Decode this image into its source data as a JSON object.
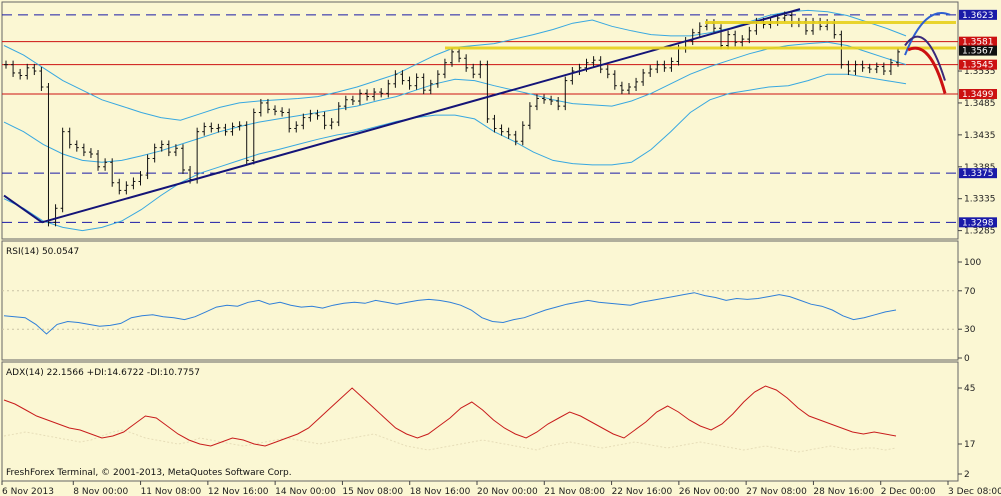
{
  "chart_data": {
    "type": "line",
    "title": "",
    "copyright": "FreshForex Terminal, © 2001-2013, MetaQuotes Software Corp.",
    "x_labels": [
      "6 Nov 2013",
      "8 Nov 00:00",
      "11 Nov 08:00",
      "12 Nov 16:00",
      "14 Nov 00:00",
      "15 Nov 08:00",
      "18 Nov 16:00",
      "20 Nov 00:00",
      "21 Nov 08:00",
      "22 Nov 16:00",
      "26 Nov 00:00",
      "27 Nov 08:00",
      "28 Nov 16:00",
      "2 Dec 00:00",
      "3 Dec 08:00"
    ],
    "price_panel": {
      "ylim": [
        1.3275,
        1.364
      ],
      "tick_labels": [
        "1.3535",
        "1.3485",
        "1.3435",
        "1.3385",
        "1.3335",
        "1.3285"
      ],
      "ticks": [
        1.3535,
        1.3485,
        1.3435,
        1.3385,
        1.3335,
        1.3285
      ],
      "levels": [
        {
          "label": "1.3623",
          "value": 1.3623,
          "color": "#1a1aa8",
          "style": "dashed"
        },
        {
          "label": "1.3581",
          "value": 1.3581,
          "color": "#cc1111",
          "style": "solid"
        },
        {
          "label": "1.3567",
          "value": 1.3567,
          "color": "#111111",
          "style": "tag"
        },
        {
          "label": "1.3545",
          "value": 1.3545,
          "color": "#cc1111",
          "style": "solid"
        },
        {
          "label": "1.3499",
          "value": 1.3499,
          "color": "#cc1111",
          "style": "solid"
        },
        {
          "label": "1.3375",
          "value": 1.3375,
          "color": "#1a1aa8",
          "style": "dashed"
        },
        {
          "label": "1.3298",
          "value": 1.3298,
          "color": "#1a1aa8",
          "style": "dashed"
        }
      ],
      "series": [
        {
          "kind": "ohlc",
          "values": [
            1.3545,
            1.3532,
            1.3528,
            1.354,
            1.3535,
            1.351,
            1.3298,
            1.332,
            1.344,
            1.342,
            1.3415,
            1.3408,
            1.3405,
            1.3385,
            1.3392,
            1.336,
            1.3348,
            1.3356,
            1.3362,
            1.3372,
            1.3398,
            1.3415,
            1.342,
            1.3408,
            1.3414,
            1.338,
            1.3365,
            1.344,
            1.3448,
            1.3445,
            1.3446,
            1.344,
            1.3448,
            1.345,
            1.3395,
            1.347,
            1.3485,
            1.3475,
            1.3472,
            1.347,
            1.3445,
            1.345,
            1.3462,
            1.3468,
            1.3465,
            1.345,
            1.3455,
            1.348,
            1.349,
            1.3488,
            1.35,
            1.3495,
            1.3502,
            1.35,
            1.3515,
            1.353,
            1.352,
            1.3512,
            1.3525,
            1.3505,
            1.3515,
            1.353,
            1.3548,
            1.3565,
            1.3555,
            1.354,
            1.353,
            1.3545,
            1.346,
            1.3445,
            1.344,
            1.3435,
            1.3425,
            1.345,
            1.348,
            1.3492,
            1.349,
            1.3488,
            1.348,
            1.352,
            1.3535,
            1.354,
            1.3548,
            1.3552,
            1.3538,
            1.353,
            1.3512,
            1.3505,
            1.351,
            1.3518,
            1.3532,
            1.3538,
            1.3545,
            1.354,
            1.355,
            1.357,
            1.3582,
            1.3595,
            1.3605,
            1.361,
            1.3602,
            1.3575,
            1.3592,
            1.358,
            1.3585,
            1.3598,
            1.3612,
            1.3608,
            1.3612,
            1.3618,
            1.3622,
            1.361,
            1.3612,
            1.3598,
            1.3612,
            1.3605,
            1.361,
            1.3592,
            1.3545,
            1.3535,
            1.3545,
            1.354,
            1.3538,
            1.3542,
            1.3535,
            1.3548,
            1.3565
          ]
        },
        {
          "kind": "bollinger-upper",
          "values": [
            1.3575,
            1.356,
            1.354,
            1.352,
            1.3505,
            1.349,
            1.348,
            1.347,
            1.3462,
            1.3458,
            1.3468,
            1.3478,
            1.3485,
            1.3488,
            1.349,
            1.3492,
            1.3495,
            1.3502,
            1.351,
            1.352,
            1.353,
            1.3545,
            1.356,
            1.3572,
            1.3575,
            1.3578,
            1.3585,
            1.3592,
            1.36,
            1.361,
            1.3615,
            1.3605,
            1.3598,
            1.3592,
            1.359,
            1.359,
            1.3595,
            1.3602,
            1.3612,
            1.3622,
            1.3628,
            1.363,
            1.3628,
            1.3622,
            1.3612,
            1.3602,
            1.359
          ]
        },
        {
          "kind": "bollinger-middle",
          "values": [
            1.3455,
            1.344,
            1.342,
            1.3405,
            1.3395,
            1.3392,
            1.3395,
            1.3402,
            1.341,
            1.342,
            1.343,
            1.344,
            1.3448,
            1.3455,
            1.346,
            1.3465,
            1.347,
            1.3475,
            1.348,
            1.3488,
            1.3495,
            1.3505,
            1.3515,
            1.3522,
            1.352,
            1.3512,
            1.3505,
            1.3498,
            1.349,
            1.3484,
            1.3482,
            1.348,
            1.3488,
            1.35,
            1.3515,
            1.353,
            1.3542,
            1.3552,
            1.3562,
            1.357,
            1.3575,
            1.3578,
            1.358,
            1.3575,
            1.3565,
            1.3555,
            1.3545
          ]
        },
        {
          "kind": "bollinger-lower",
          "values": [
            1.3335,
            1.332,
            1.33,
            1.329,
            1.3285,
            1.329,
            1.33,
            1.3318,
            1.334,
            1.336,
            1.3375,
            1.3385,
            1.3395,
            1.3405,
            1.3412,
            1.342,
            1.3428,
            1.3435,
            1.344,
            1.3448,
            1.3456,
            1.3462,
            1.3466,
            1.3466,
            1.346,
            1.344,
            1.3425,
            1.3408,
            1.3395,
            1.339,
            1.3388,
            1.3388,
            1.3392,
            1.3412,
            1.344,
            1.347,
            1.349,
            1.35,
            1.3505,
            1.351,
            1.3512,
            1.352,
            1.353,
            1.353,
            1.3525,
            1.352,
            1.3515
          ]
        }
      ]
    },
    "rsi_panel": {
      "title": "RSI(14) 50.0547",
      "ylim": [
        0,
        100
      ],
      "tick_labels": [
        "100",
        "70",
        "30",
        "0"
      ],
      "ticks": [
        100,
        70,
        30,
        0
      ],
      "values": [
        44,
        43,
        42,
        35,
        25,
        35,
        38,
        37,
        35,
        33,
        34,
        36,
        42,
        44,
        45,
        43,
        42,
        40,
        43,
        48,
        53,
        55,
        54,
        58,
        60,
        56,
        58,
        55,
        53,
        54,
        52,
        55,
        57,
        58,
        57,
        60,
        58,
        56,
        58,
        60,
        61,
        60,
        58,
        55,
        50,
        42,
        38,
        37,
        40,
        42,
        46,
        50,
        53,
        56,
        58,
        60,
        58,
        57,
        56,
        55,
        58,
        60,
        62,
        64,
        66,
        68,
        65,
        63,
        60,
        62,
        61,
        62,
        64,
        66,
        64,
        60,
        56,
        54,
        50,
        44,
        40,
        42,
        45,
        48,
        50
      ]
    },
    "adx_panel": {
      "title": "ADX(14) 22.1566 +DI:14.6722 -DI:10.7757",
      "ylim": [
        0,
        50
      ],
      "tick_labels": [
        "45",
        "17",
        "2"
      ],
      "ticks": [
        45,
        17,
        2
      ],
      "adx_values": [
        39,
        37,
        34,
        31,
        29,
        27,
        25,
        24,
        22,
        20,
        21,
        23,
        27,
        31,
        30,
        26,
        22,
        19,
        17,
        16,
        18,
        20,
        19,
        17,
        16,
        18,
        20,
        22,
        25,
        30,
        35,
        40,
        45,
        40,
        35,
        30,
        25,
        22,
        20,
        22,
        26,
        30,
        35,
        38,
        34,
        29,
        25,
        22,
        20,
        23,
        27,
        30,
        33,
        31,
        28,
        25,
        22,
        20,
        24,
        28,
        33,
        36,
        33,
        29,
        26,
        24,
        27,
        32,
        38,
        43,
        46,
        44,
        40,
        35,
        31,
        29,
        27,
        25,
        23,
        22,
        23,
        22,
        21
      ],
      "plus_di_values": [
        21,
        22,
        23,
        22,
        21,
        20,
        19,
        18,
        19,
        21,
        23,
        24,
        22,
        20,
        19,
        18,
        17,
        18,
        20,
        19,
        18,
        17,
        16,
        17,
        18,
        19,
        20,
        19,
        18,
        17,
        18,
        19,
        20,
        21,
        22,
        20,
        18,
        16,
        15,
        14,
        15,
        16,
        17,
        18,
        19,
        18,
        17,
        16,
        15,
        14,
        16,
        17,
        18,
        17,
        16,
        15,
        16,
        17,
        18,
        17,
        16,
        15,
        16,
        17,
        18,
        17,
        16,
        15,
        14,
        15,
        16,
        15,
        14,
        13,
        14,
        15,
        16,
        15,
        14,
        15,
        15,
        14,
        15
      ]
    }
  }
}
